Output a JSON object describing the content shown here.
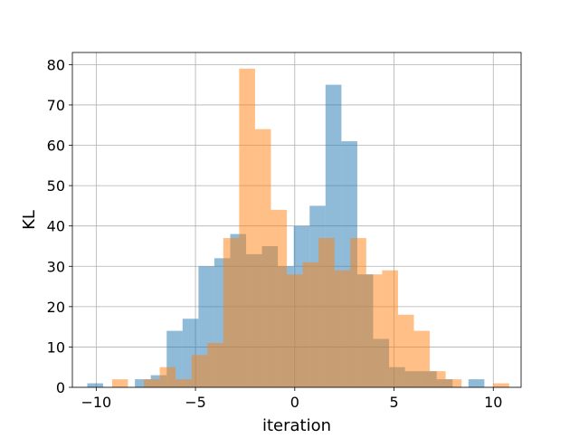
{
  "chart_data": {
    "type": "bar",
    "title": "",
    "xlabel": "iteration",
    "ylabel": "KL",
    "xlim": [
      -11.2,
      11.4
    ],
    "ylim": [
      0,
      83
    ],
    "xticks": [
      -10,
      -5,
      0,
      5,
      10
    ],
    "xtick_labels": [
      "−10",
      "−5",
      "0",
      "5",
      "10"
    ],
    "yticks": [
      0,
      10,
      20,
      30,
      40,
      50,
      60,
      70,
      80
    ],
    "ytick_labels": [
      "0",
      "10",
      "20",
      "30",
      "40",
      "50",
      "60",
      "70",
      "80"
    ],
    "grid": true,
    "legend": false,
    "overlap_color": "#c49c74",
    "series": [
      {
        "color": "#1f77b4",
        "alpha": 0.5,
        "bins": [
          {
            "x0": -10.45,
            "x1": -9.65,
            "count": 1
          },
          {
            "x0": -9.65,
            "x1": -8.85,
            "count": 0
          },
          {
            "x0": -8.85,
            "x1": -8.05,
            "count": 0
          },
          {
            "x0": -8.05,
            "x1": -7.25,
            "count": 2
          },
          {
            "x0": -7.25,
            "x1": -6.45,
            "count": 3
          },
          {
            "x0": -6.45,
            "x1": -5.65,
            "count": 14
          },
          {
            "x0": -5.65,
            "x1": -4.85,
            "count": 17
          },
          {
            "x0": -4.85,
            "x1": -4.05,
            "count": 30
          },
          {
            "x0": -4.05,
            "x1": -3.25,
            "count": 32
          },
          {
            "x0": -3.25,
            "x1": -2.45,
            "count": 38
          },
          {
            "x0": -2.45,
            "x1": -1.65,
            "count": 33
          },
          {
            "x0": -1.65,
            "x1": -0.85,
            "count": 35
          },
          {
            "x0": -0.85,
            "x1": -0.05,
            "count": 30
          },
          {
            "x0": -0.05,
            "x1": 0.75,
            "count": 40
          },
          {
            "x0": 0.75,
            "x1": 1.55,
            "count": 45
          },
          {
            "x0": 1.55,
            "x1": 2.35,
            "count": 75
          },
          {
            "x0": 2.35,
            "x1": 3.15,
            "count": 61
          },
          {
            "x0": 3.15,
            "x1": 3.95,
            "count": 28
          },
          {
            "x0": 3.95,
            "x1": 4.75,
            "count": 12
          },
          {
            "x0": 4.75,
            "x1": 5.55,
            "count": 5
          },
          {
            "x0": 5.55,
            "x1": 6.35,
            "count": 4
          },
          {
            "x0": 6.35,
            "x1": 7.15,
            "count": 4
          },
          {
            "x0": 7.15,
            "x1": 7.95,
            "count": 2
          },
          {
            "x0": 7.95,
            "x1": 8.75,
            "count": 0
          },
          {
            "x0": 8.75,
            "x1": 9.55,
            "count": 2
          }
        ]
      },
      {
        "color": "#ff7f0e",
        "alpha": 0.5,
        "bins": [
          {
            "x0": -9.2,
            "x1": -8.4,
            "count": 2
          },
          {
            "x0": -8.4,
            "x1": -7.6,
            "count": 0
          },
          {
            "x0": -7.6,
            "x1": -6.8,
            "count": 2
          },
          {
            "x0": -6.8,
            "x1": -6.0,
            "count": 5
          },
          {
            "x0": -6.0,
            "x1": -5.2,
            "count": 2
          },
          {
            "x0": -5.2,
            "x1": -4.4,
            "count": 8
          },
          {
            "x0": -4.4,
            "x1": -3.6,
            "count": 11
          },
          {
            "x0": -3.6,
            "x1": -2.8,
            "count": 37
          },
          {
            "x0": -2.8,
            "x1": -2.0,
            "count": 79
          },
          {
            "x0": -2.0,
            "x1": -1.2,
            "count": 64
          },
          {
            "x0": -1.2,
            "x1": -0.4,
            "count": 44
          },
          {
            "x0": -0.4,
            "x1": 0.4,
            "count": 28
          },
          {
            "x0": 0.4,
            "x1": 1.2,
            "count": 31
          },
          {
            "x0": 1.2,
            "x1": 2.0,
            "count": 37
          },
          {
            "x0": 2.0,
            "x1": 2.8,
            "count": 29
          },
          {
            "x0": 2.8,
            "x1": 3.6,
            "count": 37
          },
          {
            "x0": 3.6,
            "x1": 4.4,
            "count": 28
          },
          {
            "x0": 4.4,
            "x1": 5.2,
            "count": 29
          },
          {
            "x0": 5.2,
            "x1": 6.0,
            "count": 18
          },
          {
            "x0": 6.0,
            "x1": 6.8,
            "count": 14
          },
          {
            "x0": 6.8,
            "x1": 7.6,
            "count": 4
          },
          {
            "x0": 7.6,
            "x1": 8.4,
            "count": 2
          },
          {
            "x0": 8.4,
            "x1": 9.2,
            "count": 0
          },
          {
            "x0": 9.2,
            "x1": 10.0,
            "count": 0
          },
          {
            "x0": 10.0,
            "x1": 10.8,
            "count": 1
          }
        ]
      }
    ]
  }
}
